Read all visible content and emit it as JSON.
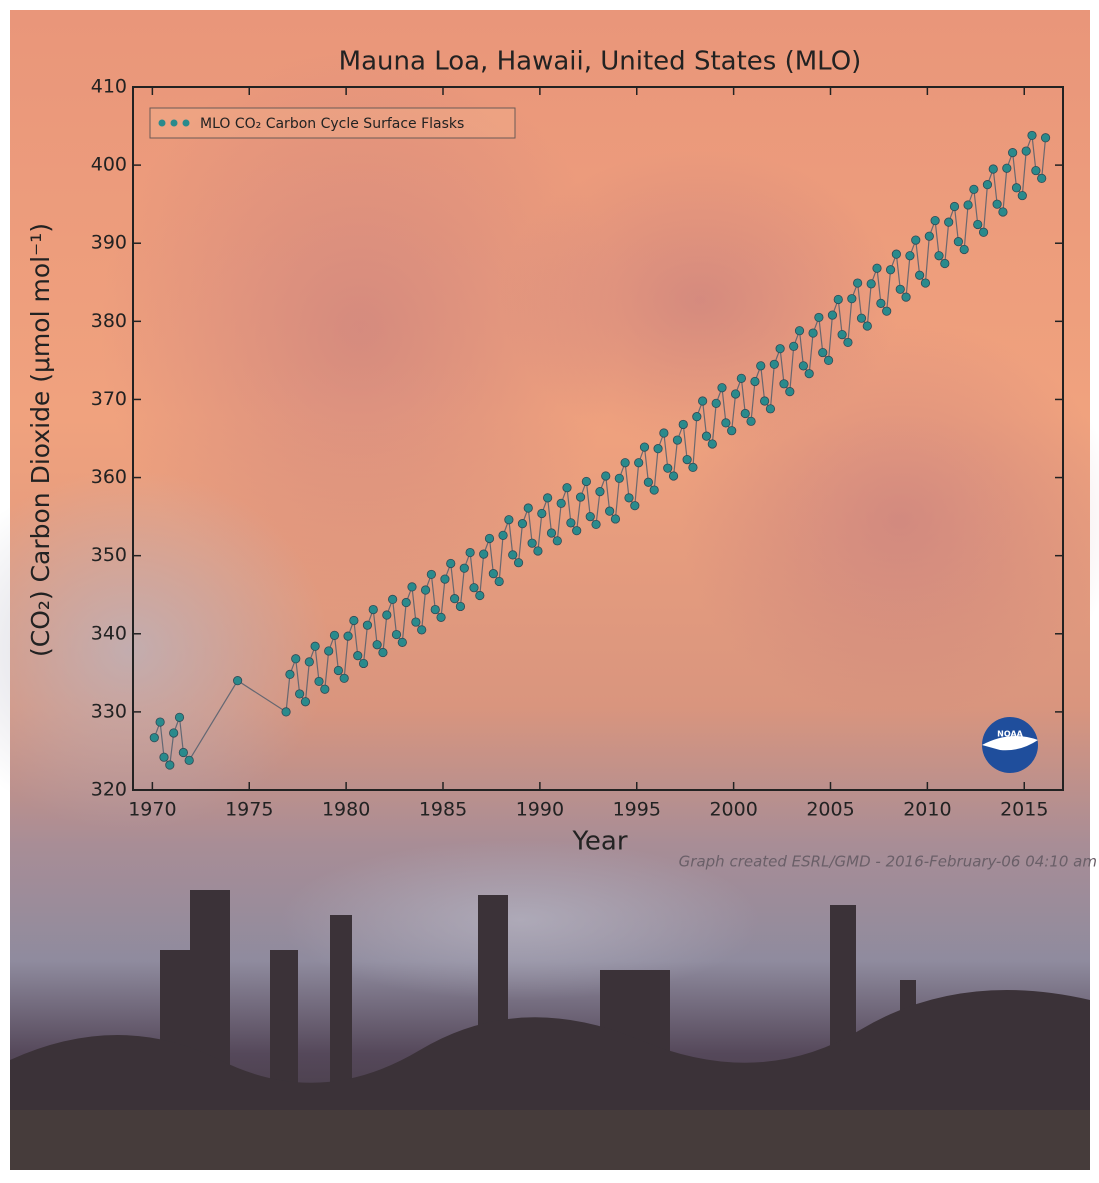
{
  "chart_data": {
    "type": "scatter",
    "title": "Mauna Loa, Hawaii, United States (MLO)",
    "x_label": "Year",
    "y_label": "(CO₂) Carbon Dioxide (μmol mol⁻¹)",
    "footer": "Graph created ESRL/GMD - 2016-February-06 04:10 am",
    "logo": "NOAA",
    "legend": "upper left",
    "xlim": [
      1969,
      2017
    ],
    "ylim": [
      320,
      410
    ],
    "xticks": [
      1970,
      1975,
      1980,
      1985,
      1990,
      1995,
      2000,
      2005,
      2010,
      2015
    ],
    "yticks": [
      320,
      330,
      340,
      350,
      360,
      370,
      380,
      390,
      400,
      410
    ],
    "series": [
      {
        "name": "MLO CO₂ Carbon Cycle Surface Flasks",
        "color": "#2a8a8c",
        "x": [
          1970.1,
          1970.4,
          1970.6,
          1970.9,
          1971.1,
          1971.4,
          1971.6,
          1971.9,
          1974.4,
          1976.9,
          1977.1,
          1977.4,
          1977.6,
          1977.9,
          1978.1,
          1978.4,
          1978.6,
          1978.9,
          1979.1,
          1979.4,
          1979.6,
          1979.9,
          1980.1,
          1980.4,
          1980.6,
          1980.9,
          1981.1,
          1981.4,
          1981.6,
          1981.9,
          1982.1,
          1982.4,
          1982.6,
          1982.9,
          1983.1,
          1983.4,
          1983.6,
          1983.9,
          1984.1,
          1984.4,
          1984.6,
          1984.9,
          1985.1,
          1985.4,
          1985.6,
          1985.9,
          1986.1,
          1986.4,
          1986.6,
          1986.9,
          1987.1,
          1987.4,
          1987.6,
          1987.9,
          1988.1,
          1988.4,
          1988.6,
          1988.9,
          1989.1,
          1989.4,
          1989.6,
          1989.9,
          1990.1,
          1990.4,
          1990.6,
          1990.9,
          1991.1,
          1991.4,
          1991.6,
          1991.9,
          1992.1,
          1992.4,
          1992.6,
          1992.9,
          1993.1,
          1993.4,
          1993.6,
          1993.9,
          1994.1,
          1994.4,
          1994.6,
          1994.9,
          1995.1,
          1995.4,
          1995.6,
          1995.9,
          1996.1,
          1996.4,
          1996.6,
          1996.9,
          1997.1,
          1997.4,
          1997.6,
          1997.9,
          1998.1,
          1998.4,
          1998.6,
          1998.9,
          1999.1,
          1999.4,
          1999.6,
          1999.9,
          2000.1,
          2000.4,
          2000.6,
          2000.9,
          2001.1,
          2001.4,
          2001.6,
          2001.9,
          2002.1,
          2002.4,
          2002.6,
          2002.9,
          2003.1,
          2003.4,
          2003.6,
          2003.9,
          2004.1,
          2004.4,
          2004.6,
          2004.9,
          2005.1,
          2005.4,
          2005.6,
          2005.9,
          2006.1,
          2006.4,
          2006.6,
          2006.9,
          2007.1,
          2007.4,
          2007.6,
          2007.9,
          2008.1,
          2008.4,
          2008.6,
          2008.9,
          2009.1,
          2009.4,
          2009.6,
          2009.9,
          2010.1,
          2010.4,
          2010.6,
          2010.9,
          2011.1,
          2011.4,
          2011.6,
          2011.9,
          2012.1,
          2012.4,
          2012.6,
          2012.9,
          2013.1,
          2013.4,
          2013.6,
          2013.9,
          2014.1,
          2014.4,
          2014.6,
          2014.9,
          2015.1,
          2015.4,
          2015.6,
          2015.9,
          2016.1
        ],
        "values": [
          326.7,
          328.7,
          324.2,
          323.2,
          327.3,
          329.3,
          324.8,
          323.8,
          334.0,
          330.0,
          334.8,
          336.8,
          332.3,
          331.3,
          336.4,
          338.4,
          333.9,
          332.9,
          337.8,
          339.8,
          335.3,
          334.3,
          339.7,
          341.7,
          337.2,
          336.2,
          341.1,
          343.1,
          338.6,
          337.6,
          342.4,
          344.4,
          339.9,
          338.9,
          344.0,
          346.0,
          341.5,
          340.5,
          345.6,
          347.6,
          343.1,
          342.1,
          347.0,
          349.0,
          344.5,
          343.5,
          348.4,
          350.4,
          345.9,
          344.9,
          350.2,
          352.2,
          347.7,
          346.7,
          352.6,
          354.6,
          350.1,
          349.1,
          354.1,
          356.1,
          351.6,
          350.6,
          355.4,
          357.4,
          352.9,
          351.9,
          356.7,
          358.7,
          354.2,
          353.2,
          357.5,
          359.5,
          355.0,
          354.0,
          358.2,
          360.2,
          355.7,
          354.7,
          359.9,
          361.9,
          357.4,
          356.4,
          361.9,
          363.9,
          359.4,
          358.4,
          363.7,
          365.7,
          361.2,
          360.2,
          364.8,
          366.8,
          362.3,
          361.3,
          367.8,
          369.8,
          365.3,
          364.3,
          369.5,
          371.5,
          367.0,
          366.0,
          370.7,
          372.7,
          368.2,
          367.2,
          372.3,
          374.3,
          369.8,
          368.8,
          374.5,
          376.5,
          372.0,
          371.0,
          376.8,
          378.8,
          374.3,
          373.3,
          378.5,
          380.5,
          376.0,
          375.0,
          380.8,
          382.8,
          378.3,
          377.3,
          382.9,
          384.9,
          380.4,
          379.4,
          384.8,
          386.8,
          382.3,
          381.3,
          386.6,
          388.6,
          384.1,
          383.1,
          388.4,
          390.4,
          385.9,
          384.9,
          390.9,
          392.9,
          388.4,
          387.4,
          392.7,
          394.7,
          390.2,
          389.2,
          394.9,
          396.9,
          392.4,
          391.4,
          397.5,
          399.5,
          395.0,
          394.0,
          399.6,
          401.6,
          397.1,
          396.1,
          401.8,
          403.8,
          399.3,
          398.3,
          403.5
        ]
      }
    ]
  }
}
